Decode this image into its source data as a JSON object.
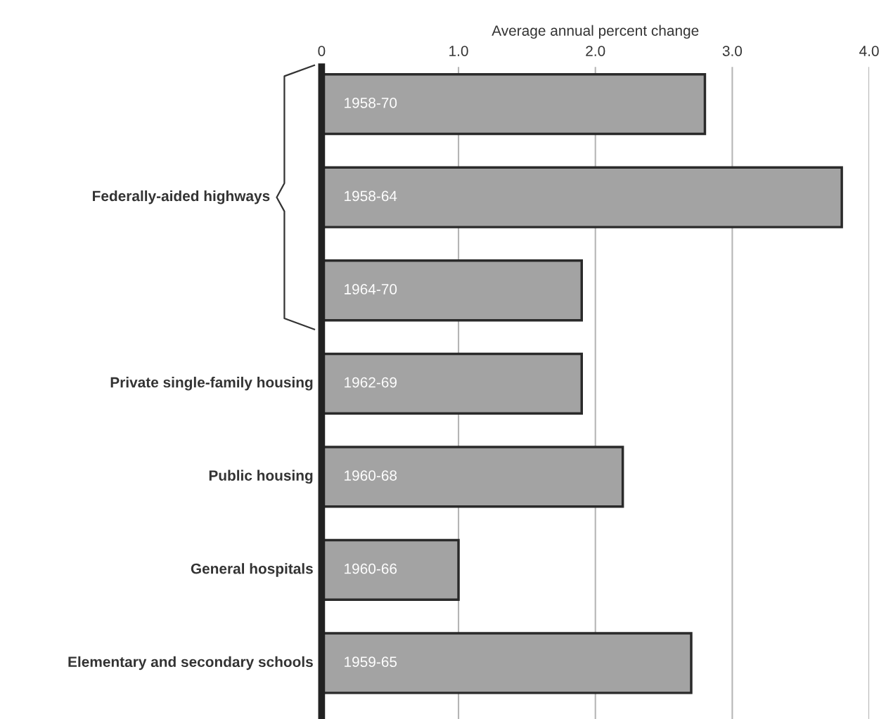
{
  "chart_data": {
    "type": "bar",
    "orientation": "horizontal",
    "xlabel": "Average annual percent change",
    "annotations": [
      "Federally-aided highways"
    ],
    "categories": [
      null,
      null,
      null,
      "Private single-family housing",
      "Public housing",
      "General hospitals",
      "Elementary and secondary schools"
    ],
    "values": [
      2.8,
      3.8,
      1.9,
      1.9,
      2.2,
      1.0,
      2.7
    ],
    "value_labels": [
      "1958-70",
      "1958-64",
      "1964-70",
      "1962-69",
      "1960-68",
      "1960-66",
      "1959-65"
    ],
    "color": "#a3a3a3",
    "xlim": [
      0,
      4.0
    ],
    "xticks": [
      0,
      {
        "value": 1.0,
        "label": "1.0"
      },
      {
        "value": 2.0,
        "label": "2.0"
      },
      {
        "value": 3.0,
        "label": "3.0"
      },
      {
        "value": 4.0,
        "label": "4.0"
      }
    ],
    "grid": "x"
  }
}
